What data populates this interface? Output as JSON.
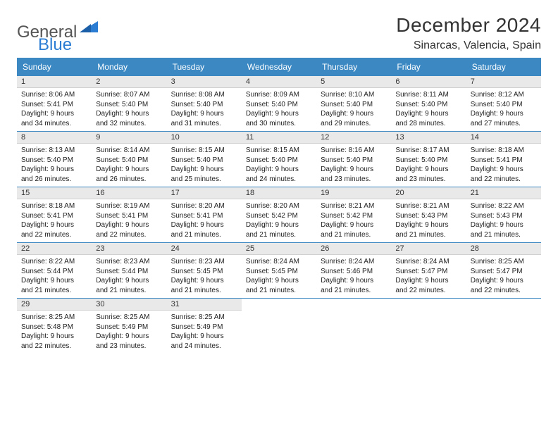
{
  "logo": {
    "text1": "General",
    "text2": "Blue"
  },
  "title": "December 2024",
  "location": "Sinarcas, Valencia, Spain",
  "colors": {
    "header_bg": "#3b88c3",
    "header_text": "#ffffff",
    "daynum_bg": "#e9e9e9",
    "divider": "#3b88c3",
    "body_text": "#222222",
    "page_bg": "#ffffff",
    "logo_gray": "#555555",
    "logo_blue": "#2b7cd3"
  },
  "weekdays": [
    "Sunday",
    "Monday",
    "Tuesday",
    "Wednesday",
    "Thursday",
    "Friday",
    "Saturday"
  ],
  "weeks": [
    [
      {
        "n": "1",
        "sr": "Sunrise: 8:06 AM",
        "ss": "Sunset: 5:41 PM",
        "dl1": "Daylight: 9 hours",
        "dl2": "and 34 minutes."
      },
      {
        "n": "2",
        "sr": "Sunrise: 8:07 AM",
        "ss": "Sunset: 5:40 PM",
        "dl1": "Daylight: 9 hours",
        "dl2": "and 32 minutes."
      },
      {
        "n": "3",
        "sr": "Sunrise: 8:08 AM",
        "ss": "Sunset: 5:40 PM",
        "dl1": "Daylight: 9 hours",
        "dl2": "and 31 minutes."
      },
      {
        "n": "4",
        "sr": "Sunrise: 8:09 AM",
        "ss": "Sunset: 5:40 PM",
        "dl1": "Daylight: 9 hours",
        "dl2": "and 30 minutes."
      },
      {
        "n": "5",
        "sr": "Sunrise: 8:10 AM",
        "ss": "Sunset: 5:40 PM",
        "dl1": "Daylight: 9 hours",
        "dl2": "and 29 minutes."
      },
      {
        "n": "6",
        "sr": "Sunrise: 8:11 AM",
        "ss": "Sunset: 5:40 PM",
        "dl1": "Daylight: 9 hours",
        "dl2": "and 28 minutes."
      },
      {
        "n": "7",
        "sr": "Sunrise: 8:12 AM",
        "ss": "Sunset: 5:40 PM",
        "dl1": "Daylight: 9 hours",
        "dl2": "and 27 minutes."
      }
    ],
    [
      {
        "n": "8",
        "sr": "Sunrise: 8:13 AM",
        "ss": "Sunset: 5:40 PM",
        "dl1": "Daylight: 9 hours",
        "dl2": "and 26 minutes."
      },
      {
        "n": "9",
        "sr": "Sunrise: 8:14 AM",
        "ss": "Sunset: 5:40 PM",
        "dl1": "Daylight: 9 hours",
        "dl2": "and 26 minutes."
      },
      {
        "n": "10",
        "sr": "Sunrise: 8:15 AM",
        "ss": "Sunset: 5:40 PM",
        "dl1": "Daylight: 9 hours",
        "dl2": "and 25 minutes."
      },
      {
        "n": "11",
        "sr": "Sunrise: 8:15 AM",
        "ss": "Sunset: 5:40 PM",
        "dl1": "Daylight: 9 hours",
        "dl2": "and 24 minutes."
      },
      {
        "n": "12",
        "sr": "Sunrise: 8:16 AM",
        "ss": "Sunset: 5:40 PM",
        "dl1": "Daylight: 9 hours",
        "dl2": "and 23 minutes."
      },
      {
        "n": "13",
        "sr": "Sunrise: 8:17 AM",
        "ss": "Sunset: 5:40 PM",
        "dl1": "Daylight: 9 hours",
        "dl2": "and 23 minutes."
      },
      {
        "n": "14",
        "sr": "Sunrise: 8:18 AM",
        "ss": "Sunset: 5:41 PM",
        "dl1": "Daylight: 9 hours",
        "dl2": "and 22 minutes."
      }
    ],
    [
      {
        "n": "15",
        "sr": "Sunrise: 8:18 AM",
        "ss": "Sunset: 5:41 PM",
        "dl1": "Daylight: 9 hours",
        "dl2": "and 22 minutes."
      },
      {
        "n": "16",
        "sr": "Sunrise: 8:19 AM",
        "ss": "Sunset: 5:41 PM",
        "dl1": "Daylight: 9 hours",
        "dl2": "and 22 minutes."
      },
      {
        "n": "17",
        "sr": "Sunrise: 8:20 AM",
        "ss": "Sunset: 5:41 PM",
        "dl1": "Daylight: 9 hours",
        "dl2": "and 21 minutes."
      },
      {
        "n": "18",
        "sr": "Sunrise: 8:20 AM",
        "ss": "Sunset: 5:42 PM",
        "dl1": "Daylight: 9 hours",
        "dl2": "and 21 minutes."
      },
      {
        "n": "19",
        "sr": "Sunrise: 8:21 AM",
        "ss": "Sunset: 5:42 PM",
        "dl1": "Daylight: 9 hours",
        "dl2": "and 21 minutes."
      },
      {
        "n": "20",
        "sr": "Sunrise: 8:21 AM",
        "ss": "Sunset: 5:43 PM",
        "dl1": "Daylight: 9 hours",
        "dl2": "and 21 minutes."
      },
      {
        "n": "21",
        "sr": "Sunrise: 8:22 AM",
        "ss": "Sunset: 5:43 PM",
        "dl1": "Daylight: 9 hours",
        "dl2": "and 21 minutes."
      }
    ],
    [
      {
        "n": "22",
        "sr": "Sunrise: 8:22 AM",
        "ss": "Sunset: 5:44 PM",
        "dl1": "Daylight: 9 hours",
        "dl2": "and 21 minutes."
      },
      {
        "n": "23",
        "sr": "Sunrise: 8:23 AM",
        "ss": "Sunset: 5:44 PM",
        "dl1": "Daylight: 9 hours",
        "dl2": "and 21 minutes."
      },
      {
        "n": "24",
        "sr": "Sunrise: 8:23 AM",
        "ss": "Sunset: 5:45 PM",
        "dl1": "Daylight: 9 hours",
        "dl2": "and 21 minutes."
      },
      {
        "n": "25",
        "sr": "Sunrise: 8:24 AM",
        "ss": "Sunset: 5:45 PM",
        "dl1": "Daylight: 9 hours",
        "dl2": "and 21 minutes."
      },
      {
        "n": "26",
        "sr": "Sunrise: 8:24 AM",
        "ss": "Sunset: 5:46 PM",
        "dl1": "Daylight: 9 hours",
        "dl2": "and 21 minutes."
      },
      {
        "n": "27",
        "sr": "Sunrise: 8:24 AM",
        "ss": "Sunset: 5:47 PM",
        "dl1": "Daylight: 9 hours",
        "dl2": "and 22 minutes."
      },
      {
        "n": "28",
        "sr": "Sunrise: 8:25 AM",
        "ss": "Sunset: 5:47 PM",
        "dl1": "Daylight: 9 hours",
        "dl2": "and 22 minutes."
      }
    ],
    [
      {
        "n": "29",
        "sr": "Sunrise: 8:25 AM",
        "ss": "Sunset: 5:48 PM",
        "dl1": "Daylight: 9 hours",
        "dl2": "and 22 minutes."
      },
      {
        "n": "30",
        "sr": "Sunrise: 8:25 AM",
        "ss": "Sunset: 5:49 PM",
        "dl1": "Daylight: 9 hours",
        "dl2": "and 23 minutes."
      },
      {
        "n": "31",
        "sr": "Sunrise: 8:25 AM",
        "ss": "Sunset: 5:49 PM",
        "dl1": "Daylight: 9 hours",
        "dl2": "and 24 minutes."
      },
      null,
      null,
      null,
      null
    ]
  ]
}
